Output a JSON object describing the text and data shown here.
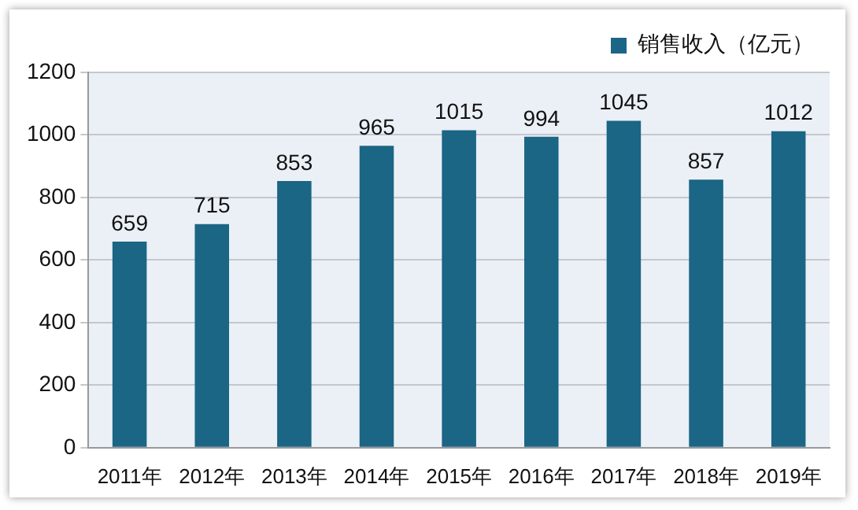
{
  "chart_data": {
    "type": "bar",
    "categories": [
      "2011年",
      "2012年",
      "2013年",
      "2014年",
      "2015年",
      "2016年",
      "2017年",
      "2018年",
      "2019年"
    ],
    "series": [
      {
        "name": "销售收入（亿元）",
        "color": "#1b6585",
        "values": [
          659,
          715,
          853,
          965,
          1015,
          994,
          1045,
          857,
          1012
        ]
      }
    ],
    "ylim": [
      0,
      1200
    ],
    "yticks": [
      0,
      200,
      400,
      600,
      800,
      1000,
      1200
    ],
    "grid": "y",
    "legend": "top",
    "data_labels": true
  }
}
